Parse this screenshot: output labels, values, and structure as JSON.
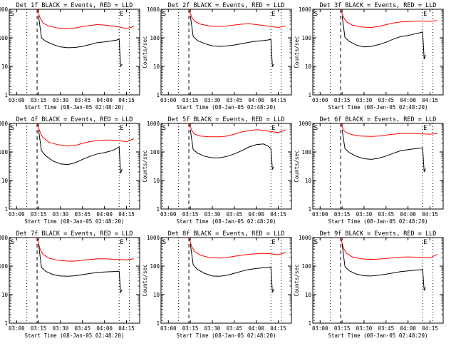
{
  "chart_data": {
    "type": "line",
    "layout": "3x3 grid",
    "y_scale": "log",
    "ylim": [
      1,
      1000
    ],
    "yticks": [
      "1",
      "10",
      "100",
      "1000"
    ],
    "xlim_minutes": [
      "02:55",
      "04:24"
    ],
    "xticks": [
      "03:00",
      "03:15",
      "03:30",
      "03:45",
      "04:00",
      "04:15"
    ],
    "xlabel": "Start Time (08-Jan-05 02:48:20)",
    "ylabel": "Counts/sec",
    "colors": {
      "events": "#000000",
      "lld": "#ff0000"
    },
    "start_marker": "S",
    "end_marker": "E",
    "panels": [
      {
        "title": "Det 1f BLACK = Events, RED = LLD",
        "dotted_lines": [
          "02:56",
          "03:07",
          "04:10",
          "04:17"
        ],
        "dashed_lines": [
          "03:14"
        ],
        "events": {
          "x": [
            "03:15",
            "03:17",
            "03:20",
            "03:25",
            "03:30",
            "03:35",
            "03:40",
            "03:45",
            "03:50",
            "03:55",
            "04:00",
            "04:05",
            "04:08",
            "04:10",
            "04:11",
            "04:12"
          ],
          "y": [
            600,
            100,
            75,
            58,
            48,
            45,
            46,
            50,
            58,
            68,
            72,
            78,
            82,
            90,
            10,
            12
          ]
        },
        "lld": {
          "x": [
            "03:14",
            "03:16",
            "03:18",
            "03:22",
            "03:28",
            "03:35",
            "03:40",
            "03:45",
            "03:50",
            "03:55",
            "04:00",
            "04:05",
            "04:10",
            "04:15",
            "04:20"
          ],
          "y": [
            1000,
            500,
            330,
            260,
            220,
            210,
            220,
            250,
            270,
            290,
            280,
            260,
            240,
            210,
            250
          ]
        }
      },
      {
        "title": "Det 2f BLACK = Events, RED = LLD",
        "dotted_lines": [
          "02:56",
          "03:07",
          "04:10",
          "04:17"
        ],
        "dashed_lines": [
          "03:14"
        ],
        "events": {
          "x": [
            "03:15",
            "03:17",
            "03:20",
            "03:25",
            "03:30",
            "03:35",
            "03:40",
            "03:45",
            "03:50",
            "03:55",
            "04:00",
            "04:05",
            "04:08",
            "04:10",
            "04:11",
            "04:12"
          ],
          "y": [
            600,
            110,
            80,
            62,
            52,
            50,
            52,
            56,
            62,
            70,
            76,
            80,
            84,
            88,
            10,
            12
          ]
        },
        "lld": {
          "x": [
            "03:14",
            "03:16",
            "03:18",
            "03:22",
            "03:28",
            "03:35",
            "03:40",
            "03:45",
            "03:50",
            "03:55",
            "04:00",
            "04:05",
            "04:10",
            "04:15",
            "04:20"
          ],
          "y": [
            1000,
            520,
            380,
            300,
            260,
            250,
            260,
            280,
            300,
            310,
            290,
            270,
            250,
            230,
            260
          ]
        }
      },
      {
        "title": "Det 3f BLACK = Events, RED = LLD",
        "dotted_lines": [
          "02:56",
          "03:07",
          "04:10",
          "04:17"
        ],
        "dashed_lines": [
          "03:14"
        ],
        "events": {
          "x": [
            "03:15",
            "03:17",
            "03:20",
            "03:25",
            "03:30",
            "03:35",
            "03:40",
            "03:45",
            "03:50",
            "03:55",
            "04:00",
            "04:05",
            "04:08",
            "04:10",
            "04:11",
            "04:12"
          ],
          "y": [
            600,
            100,
            75,
            55,
            48,
            50,
            58,
            70,
            90,
            110,
            120,
            140,
            150,
            160,
            18,
            25
          ]
        },
        "lld": {
          "x": [
            "03:14",
            "03:16",
            "03:18",
            "03:22",
            "03:28",
            "03:35",
            "03:40",
            "03:45",
            "03:50",
            "03:55",
            "04:00",
            "04:05",
            "04:10",
            "04:15",
            "04:20"
          ],
          "y": [
            1000,
            520,
            360,
            280,
            240,
            230,
            250,
            290,
            330,
            360,
            370,
            380,
            390,
            380,
            400
          ]
        }
      },
      {
        "title": "Det 4f BLACK = Events, RED = LLD",
        "dotted_lines": [
          "02:56",
          "03:07",
          "04:10",
          "04:17"
        ],
        "dashed_lines": [
          "03:14"
        ],
        "events": {
          "x": [
            "03:15",
            "03:17",
            "03:20",
            "03:25",
            "03:30",
            "03:35",
            "03:40",
            "03:45",
            "03:50",
            "03:55",
            "04:00",
            "04:05",
            "04:08",
            "04:10",
            "04:11",
            "04:12"
          ],
          "y": [
            600,
            110,
            72,
            48,
            38,
            36,
            42,
            55,
            70,
            85,
            95,
            110,
            130,
            150,
            18,
            25
          ]
        },
        "lld": {
          "x": [
            "03:14",
            "03:16",
            "03:18",
            "03:22",
            "03:28",
            "03:35",
            "03:40",
            "03:45",
            "03:50",
            "03:55",
            "04:00",
            "04:05",
            "04:10",
            "04:15",
            "04:20"
          ],
          "y": [
            1000,
            500,
            320,
            220,
            180,
            160,
            170,
            200,
            230,
            250,
            260,
            260,
            250,
            230,
            290
          ]
        }
      },
      {
        "title": "Det 5f BLACK = Events, RED = LLD",
        "dotted_lines": [
          "02:56",
          "03:07",
          "04:10",
          "04:17"
        ],
        "dashed_lines": [
          "03:14"
        ],
        "events": {
          "x": [
            "03:15",
            "03:17",
            "03:20",
            "03:25",
            "03:30",
            "03:35",
            "03:40",
            "03:45",
            "03:50",
            "03:55",
            "04:00",
            "04:05",
            "04:08",
            "04:10",
            "04:11",
            "04:12"
          ],
          "y": [
            600,
            120,
            90,
            70,
            62,
            62,
            70,
            85,
            110,
            150,
            180,
            190,
            160,
            130,
            25,
            30
          ]
        },
        "lld": {
          "x": [
            "03:14",
            "03:16",
            "03:18",
            "03:22",
            "03:28",
            "03:35",
            "03:40",
            "03:45",
            "03:50",
            "03:55",
            "04:00",
            "04:05",
            "04:10",
            "04:15",
            "04:20"
          ],
          "y": [
            1000,
            560,
            420,
            360,
            340,
            340,
            360,
            420,
            500,
            560,
            600,
            580,
            520,
            480,
            600
          ]
        }
      },
      {
        "title": "Det 6f BLACK = Events, RED = LLD",
        "dotted_lines": [
          "02:56",
          "03:07",
          "04:10",
          "04:17"
        ],
        "dashed_lines": [
          "03:14"
        ],
        "events": {
          "x": [
            "03:15",
            "03:17",
            "03:20",
            "03:25",
            "03:30",
            "03:35",
            "03:40",
            "03:45",
            "03:50",
            "03:55",
            "04:00",
            "04:05",
            "04:08",
            "04:10",
            "04:11",
            "04:12"
          ],
          "y": [
            600,
            130,
            95,
            70,
            58,
            55,
            60,
            72,
            90,
            110,
            120,
            130,
            135,
            140,
            20,
            26
          ]
        },
        "lld": {
          "x": [
            "03:14",
            "03:16",
            "03:18",
            "03:22",
            "03:28",
            "03:35",
            "03:40",
            "03:45",
            "03:50",
            "03:55",
            "04:00",
            "04:05",
            "04:10",
            "04:15",
            "04:20"
          ],
          "y": [
            1000,
            580,
            470,
            400,
            360,
            350,
            360,
            390,
            420,
            440,
            450,
            440,
            430,
            420,
            440
          ]
        }
      },
      {
        "title": "Det 7f BLACK = Events, RED = LLD",
        "dotted_lines": [
          "02:56",
          "03:07",
          "04:10",
          "04:17"
        ],
        "dashed_lines": [
          "03:14"
        ],
        "events": {
          "x": [
            "03:15",
            "03:17",
            "03:20",
            "03:25",
            "03:30",
            "03:35",
            "03:40",
            "03:45",
            "03:50",
            "03:55",
            "04:00",
            "04:05",
            "04:08",
            "04:10",
            "04:11",
            "04:12"
          ],
          "y": [
            600,
            90,
            65,
            50,
            45,
            44,
            46,
            50,
            55,
            60,
            62,
            64,
            65,
            66,
            12,
            15
          ]
        },
        "lld": {
          "x": [
            "03:14",
            "03:16",
            "03:18",
            "03:22",
            "03:28",
            "03:35",
            "03:40",
            "03:45",
            "03:50",
            "03:55",
            "04:00",
            "04:05",
            "04:10",
            "04:15",
            "04:20"
          ],
          "y": [
            1000,
            400,
            260,
            190,
            160,
            150,
            150,
            160,
            170,
            180,
            180,
            175,
            170,
            165,
            180
          ]
        }
      },
      {
        "title": "Det 8f BLACK = Events, RED = LLD",
        "dotted_lines": [
          "02:56",
          "03:07",
          "04:10",
          "04:17"
        ],
        "dashed_lines": [
          "03:14"
        ],
        "events": {
          "x": [
            "03:15",
            "03:17",
            "03:20",
            "03:25",
            "03:30",
            "03:35",
            "03:40",
            "03:45",
            "03:50",
            "03:55",
            "04:00",
            "04:05",
            "04:08",
            "04:10",
            "04:11",
            "04:12"
          ],
          "y": [
            600,
            110,
            75,
            55,
            45,
            44,
            48,
            56,
            66,
            76,
            82,
            88,
            90,
            92,
            12,
            16
          ]
        },
        "lld": {
          "x": [
            "03:14",
            "03:16",
            "03:18",
            "03:22",
            "03:28",
            "03:35",
            "03:40",
            "03:45",
            "03:50",
            "03:55",
            "04:00",
            "04:05",
            "04:10",
            "04:15",
            "04:20"
          ],
          "y": [
            1000,
            480,
            320,
            240,
            200,
            190,
            200,
            220,
            240,
            260,
            270,
            280,
            270,
            250,
            300
          ]
        }
      },
      {
        "title": "Det 9f BLACK = Events, RED = LLD",
        "dotted_lines": [
          "02:56",
          "03:07",
          "04:10",
          "04:17"
        ],
        "dashed_lines": [
          "03:14"
        ],
        "events": {
          "x": [
            "03:15",
            "03:17",
            "03:20",
            "03:25",
            "03:30",
            "03:35",
            "03:40",
            "03:45",
            "03:50",
            "03:55",
            "04:00",
            "04:05",
            "04:08",
            "04:10",
            "04:11",
            "04:12"
          ],
          "y": [
            600,
            95,
            68,
            52,
            46,
            45,
            48,
            52,
            58,
            64,
            68,
            72,
            74,
            76,
            14,
            18
          ]
        },
        "lld": {
          "x": [
            "03:14",
            "03:16",
            "03:18",
            "03:22",
            "03:28",
            "03:35",
            "03:40",
            "03:45",
            "03:50",
            "03:55",
            "04:00",
            "04:05",
            "04:10",
            "04:15",
            "04:20"
          ],
          "y": [
            1000,
            420,
            280,
            210,
            180,
            170,
            175,
            185,
            195,
            205,
            210,
            205,
            200,
            195,
            260
          ]
        }
      }
    ]
  }
}
